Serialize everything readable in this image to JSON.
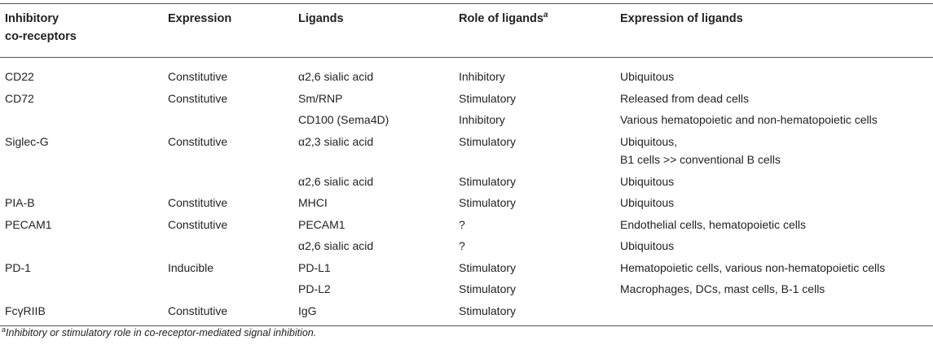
{
  "headers": {
    "col1": "Inhibitory\nco-receptors",
    "col2": "Expression",
    "col3": "Ligands",
    "col4": "Role of ligands",
    "col4_sup": "a",
    "col5": "Expression of ligands"
  },
  "rows": [
    {
      "receptor": "CD22",
      "expression": "Constitutive",
      "ligand": "α2,6 sialic acid",
      "role": "Inhibitory",
      "lig_expr": "Ubiquitous"
    },
    {
      "receptor": "CD72",
      "expression": "Constitutive",
      "ligand": "Sm/RNP",
      "role": "Stimulatory",
      "lig_expr": "Released from dead cells"
    },
    {
      "receptor": "",
      "expression": "",
      "ligand": "CD100 (Sema4D)",
      "role": "Inhibitory",
      "lig_expr": "Various hematopoietic and non-hematopoietic cells"
    },
    {
      "receptor": "Siglec-G",
      "expression": "Constitutive",
      "ligand": "α2,3 sialic acid",
      "role": "Stimulatory",
      "lig_expr": "Ubiquitous,\nB1 cells >> conventional B cells"
    },
    {
      "receptor": "",
      "expression": "",
      "ligand": "α2,6 sialic acid",
      "role": "Stimulatory",
      "lig_expr": "Ubiquitous"
    },
    {
      "receptor": "PIA-B",
      "expression": "Constitutive",
      "ligand": "MHCI",
      "role": "Stimulatory",
      "lig_expr": "Ubiquitous"
    },
    {
      "receptor": "PECAM1",
      "expression": "Constitutive",
      "ligand": "PECAM1",
      "role": "?",
      "lig_expr": "Endothelial cells, hematopoietic cells"
    },
    {
      "receptor": "",
      "expression": "",
      "ligand": "α2,6 sialic acid",
      "role": "?",
      "lig_expr": "Ubiquitous"
    },
    {
      "receptor": "PD-1",
      "expression": "Inducible",
      "ligand": "PD-L1",
      "role": "Stimulatory",
      "lig_expr": "Hematopoietic cells, various non-hematopoietic cells"
    },
    {
      "receptor": "",
      "expression": "",
      "ligand": "PD-L2",
      "role": "Stimulatory",
      "lig_expr": "Macrophages, DCs, mast cells, B-1 cells"
    },
    {
      "receptor": "FcγRIIB",
      "expression": "Constitutive",
      "ligand": "IgG",
      "role": "Stimulatory",
      "lig_expr": ""
    }
  ],
  "footnote": {
    "mark": "a",
    "text": "Inhibitory or stimulatory role in co-receptor-mediated signal inhibition."
  }
}
